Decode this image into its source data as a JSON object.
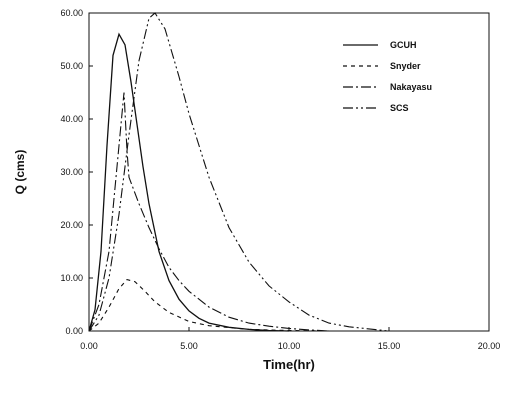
{
  "chart_data": {
    "type": "line",
    "title": "",
    "xlabel": "Time(hr)",
    "ylabel": "Q (cms)",
    "xlim": [
      0,
      20
    ],
    "ylim": [
      0,
      60
    ],
    "x_ticks": [
      "0.00",
      "5.00",
      "10.00",
      "15.00",
      "20.00"
    ],
    "y_ticks": [
      "0.00",
      "10.00",
      "20.00",
      "30.00",
      "40.00",
      "50.00",
      "60.00"
    ],
    "grid": false,
    "legend_position": "top-right",
    "series": [
      {
        "name": "GCUH",
        "dash": "solid",
        "x": [
          0,
          0.3,
          0.6,
          0.9,
          1.2,
          1.5,
          1.8,
          2.1,
          2.4,
          2.7,
          3.0,
          3.5,
          4.0,
          4.5,
          5.0,
          5.5,
          6.0,
          7.0,
          8.0,
          9.0,
          10.0
        ],
        "y": [
          0,
          4,
          15,
          35,
          52,
          56,
          54,
          47,
          39,
          31,
          24,
          15,
          9.5,
          6,
          3.8,
          2.4,
          1.5,
          0.7,
          0.3,
          0.1,
          0
        ]
      },
      {
        "name": "Snyder",
        "dash": "dashed",
        "x": [
          0,
          0.5,
          1.0,
          1.5,
          1.9,
          2.3,
          2.8,
          3.3,
          4.0,
          5.0,
          6.0,
          8.0,
          10.0,
          12.0
        ],
        "y": [
          0,
          1.5,
          4.5,
          8,
          9.7,
          9.3,
          7.5,
          5.5,
          3.5,
          1.8,
          1.0,
          0.3,
          0.1,
          0
        ]
      },
      {
        "name": "Nakayasu",
        "dash": "dash-dot",
        "x": [
          0,
          0.5,
          1.0,
          1.5,
          1.75,
          1.9,
          2.0,
          2.2,
          2.5,
          3.0,
          3.5,
          4.0,
          4.5,
          5.0,
          6.0,
          7.0,
          8.0,
          9.0,
          10.0,
          11.0,
          12.0
        ],
        "y": [
          0,
          5,
          15,
          35,
          45,
          34,
          29,
          27,
          24,
          19.5,
          15.5,
          12,
          9.5,
          7.5,
          4.5,
          2.6,
          1.5,
          0.9,
          0.5,
          0.2,
          0
        ]
      },
      {
        "name": "SCS",
        "dash": "dash-dot-dot",
        "x": [
          0,
          0.5,
          1.0,
          1.5,
          2.0,
          2.5,
          3.0,
          3.3,
          3.8,
          4.5,
          5.0,
          6.0,
          7.0,
          8.0,
          9.0,
          10.0,
          11.0,
          12.0,
          13.0,
          14.0,
          15.0
        ],
        "y": [
          0,
          3,
          10,
          22,
          37,
          51,
          59,
          60,
          57,
          48,
          41,
          29,
          19.5,
          13,
          8.5,
          5.5,
          3,
          1.5,
          0.8,
          0.4,
          0
        ]
      }
    ]
  }
}
